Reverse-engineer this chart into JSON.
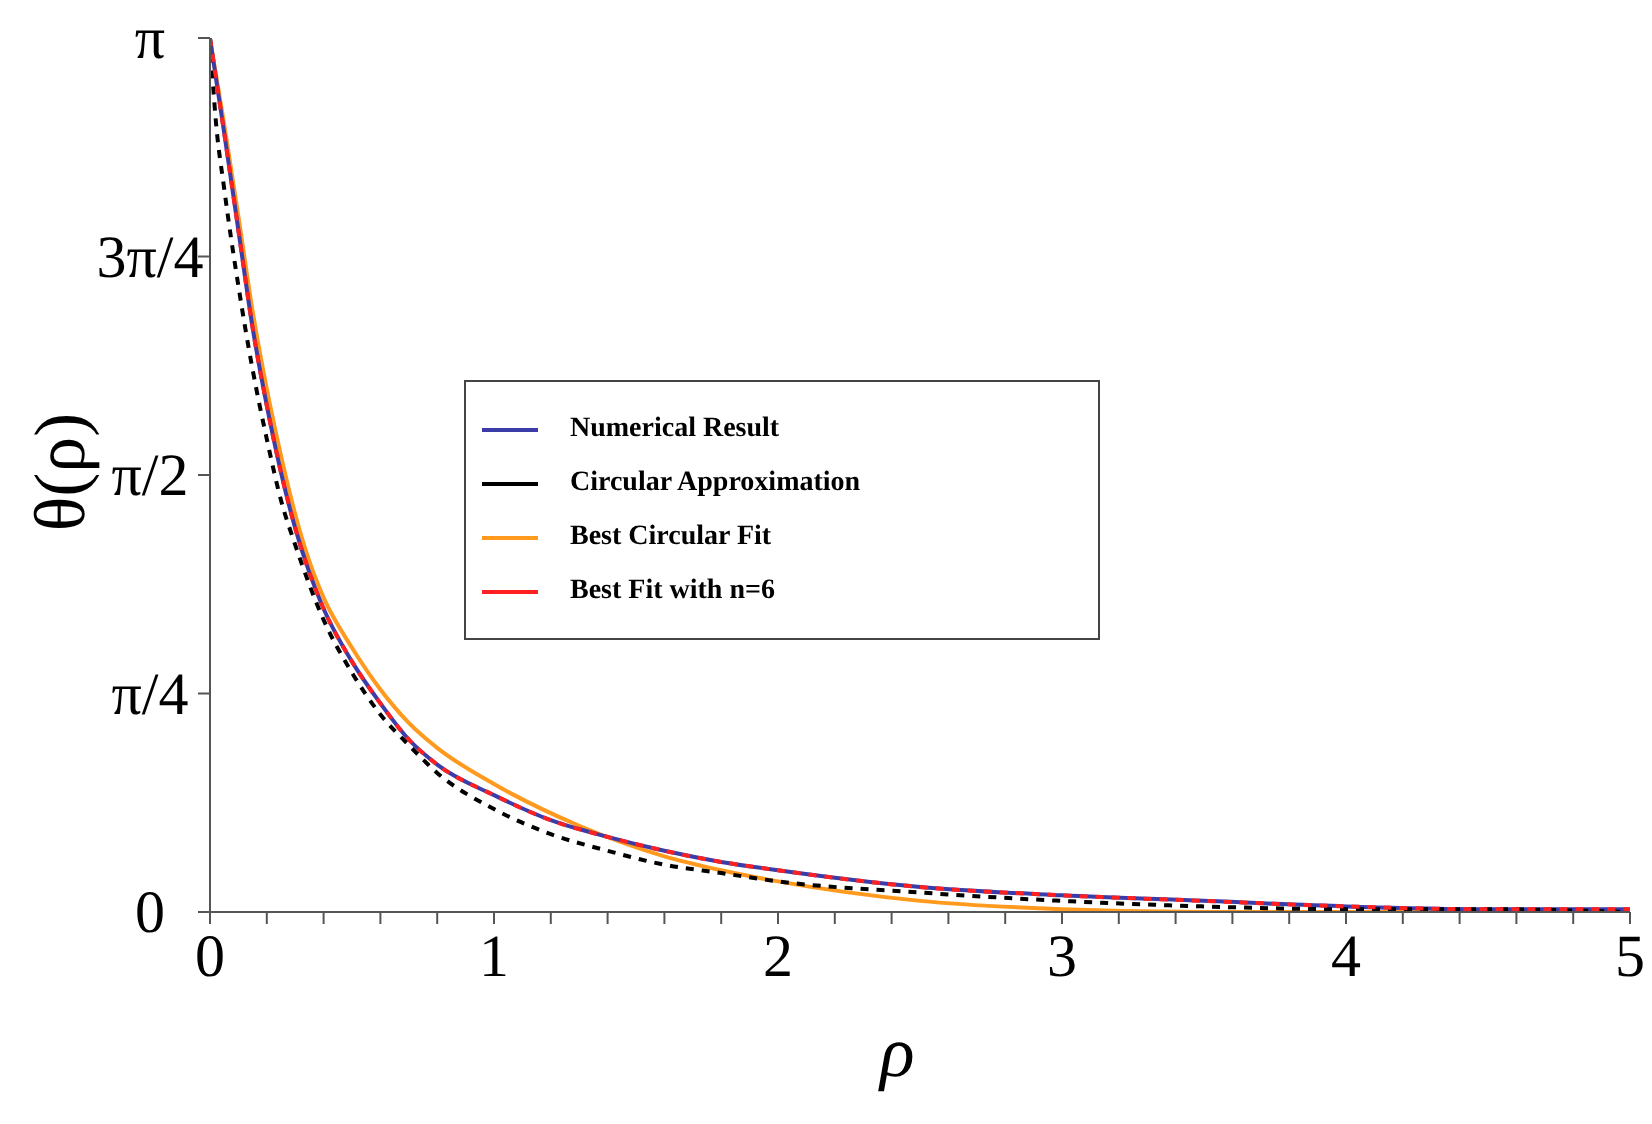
{
  "chart_data": {
    "type": "line",
    "xlabel": "ρ",
    "ylabel": "θ(ρ)",
    "xlim": [
      0,
      5
    ],
    "ylim": [
      0,
      3.1416
    ],
    "xticks": [
      0,
      {
        "value": 0.2,
        "label": null
      },
      {
        "value": 0.4,
        "label": null
      },
      {
        "value": 0.6,
        "label": null
      },
      {
        "value": 0.8,
        "label": null
      },
      1,
      {
        "value": 1.2,
        "label": null
      },
      {
        "value": 1.4,
        "label": null
      },
      {
        "value": 1.6,
        "label": null
      },
      {
        "value": 1.8,
        "label": null
      },
      2,
      {
        "value": 2.2,
        "label": null
      },
      {
        "value": 2.4,
        "label": null
      },
      {
        "value": 2.6,
        "label": null
      },
      {
        "value": 2.8,
        "label": null
      },
      3,
      {
        "value": 3.2,
        "label": null
      },
      {
        "value": 3.4,
        "label": null
      },
      {
        "value": 3.6,
        "label": null
      },
      {
        "value": 3.8,
        "label": null
      },
      4,
      {
        "value": 4.2,
        "label": null
      },
      {
        "value": 4.4,
        "label": null
      },
      {
        "value": 4.6,
        "label": null
      },
      {
        "value": 4.8,
        "label": null
      },
      5
    ],
    "yticks": [
      0,
      {
        "value": 0.7854,
        "label": "π/4"
      },
      {
        "value": 1.5708,
        "label": "π/2"
      },
      {
        "value": 2.3562,
        "label": "3π/4"
      },
      {
        "value": 3.1416,
        "label": "π"
      }
    ],
    "grid": false,
    "legend": "center",
    "marker": "none",
    "series": [
      {
        "name": "Numerical Result",
        "color": "#3c3ca8",
        "line_style": "solid",
        "x": [
          0,
          0.05,
          0.1,
          0.15,
          0.2,
          0.25,
          0.3,
          0.35,
          0.4,
          0.5,
          0.6,
          0.7,
          0.8,
          1.0,
          1.2,
          1.4,
          1.6,
          1.8,
          2.0,
          2.5,
          3.0,
          3.5,
          4.0,
          4.5,
          5.0
        ],
        "values": [
          3.14,
          2.8,
          2.45,
          2.1,
          1.82,
          1.58,
          1.38,
          1.22,
          1.09,
          0.9,
          0.75,
          0.62,
          0.53,
          0.42,
          0.33,
          0.27,
          0.22,
          0.18,
          0.15,
          0.09,
          0.06,
          0.04,
          0.02,
          0.01,
          0.01
        ]
      },
      {
        "name": "Circular Approximation",
        "color": "#000000",
        "line_style": "dashed",
        "x": [
          0,
          0.02,
          0.05,
          0.1,
          0.15,
          0.2,
          0.25,
          0.3,
          0.4,
          0.5,
          0.6,
          0.7,
          0.8,
          1.0,
          1.2,
          1.4,
          1.6,
          1.8,
          2.0,
          2.5,
          3.0,
          3.5,
          4.0,
          4.5,
          5.0
        ],
        "values": [
          3.14,
          2.85,
          2.6,
          2.25,
          1.95,
          1.7,
          1.48,
          1.32,
          1.05,
          0.86,
          0.71,
          0.6,
          0.5,
          0.37,
          0.28,
          0.22,
          0.17,
          0.14,
          0.11,
          0.07,
          0.04,
          0.02,
          0.01,
          0.01,
          0
        ]
      },
      {
        "name": "Best Circular Fit",
        "color": "#ff9a1e",
        "line_style": "solid",
        "x": [
          0,
          0.05,
          0.1,
          0.15,
          0.2,
          0.25,
          0.3,
          0.35,
          0.4,
          0.5,
          0.6,
          0.7,
          0.8,
          1.0,
          1.3,
          1.6,
          1.8,
          2.0,
          2.5,
          3.0,
          3.5,
          4.0,
          5.0
        ],
        "values": [
          3.14,
          2.83,
          2.5,
          2.16,
          1.88,
          1.64,
          1.43,
          1.26,
          1.13,
          0.95,
          0.8,
          0.68,
          0.59,
          0.46,
          0.31,
          0.2,
          0.15,
          0.11,
          0.04,
          0.01,
          0,
          0,
          0
        ]
      },
      {
        "name": "Best Fit with n=6",
        "color": "#ff2020",
        "line_style": "dashed",
        "x": [
          0,
          0.05,
          0.1,
          0.15,
          0.2,
          0.25,
          0.3,
          0.35,
          0.4,
          0.5,
          0.6,
          0.7,
          0.8,
          1.0,
          1.2,
          1.4,
          1.6,
          1.8,
          2.0,
          2.5,
          3.0,
          3.5,
          4.0,
          4.5,
          5.0
        ],
        "values": [
          3.14,
          2.8,
          2.45,
          2.1,
          1.82,
          1.58,
          1.38,
          1.22,
          1.09,
          0.9,
          0.75,
          0.62,
          0.53,
          0.42,
          0.33,
          0.27,
          0.22,
          0.18,
          0.15,
          0.09,
          0.06,
          0.04,
          0.02,
          0.01,
          0.01
        ]
      }
    ]
  }
}
